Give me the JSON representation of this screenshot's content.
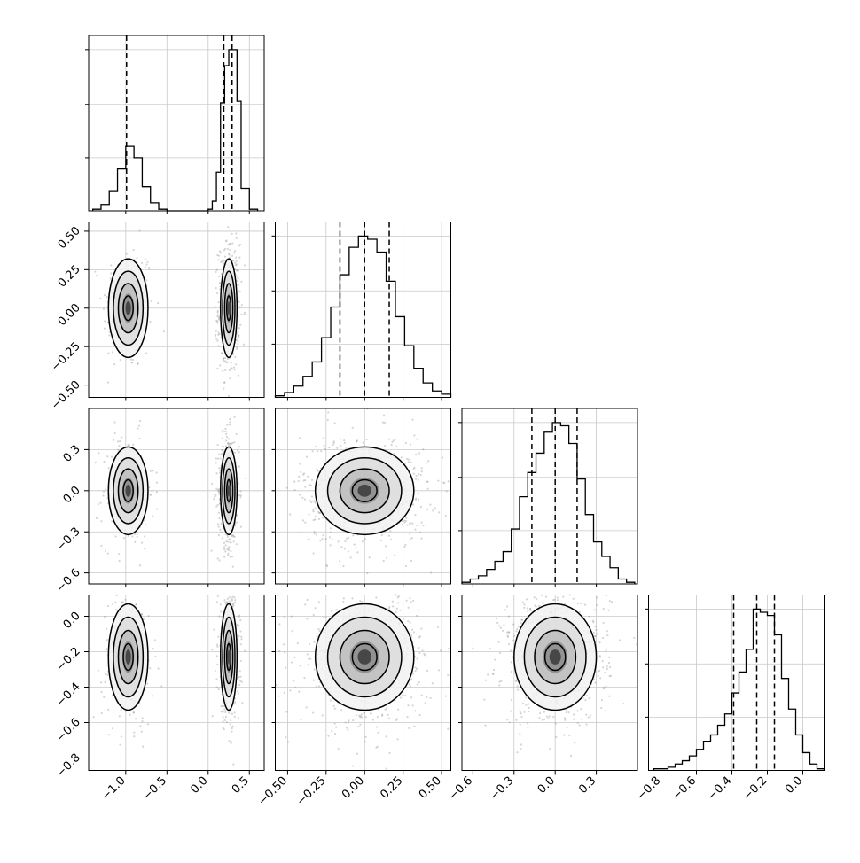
{
  "chart_data": {
    "type": "corner",
    "parameters": [
      {
        "ticks": [
          -1.0,
          -0.5,
          0.0,
          0.5
        ],
        "tick_labels": [
          "−1.0",
          "−0.5",
          "0.0",
          "0.5"
        ],
        "xlim": [
          -1.45,
          0.68
        ],
        "quantile_lines": [
          -0.99,
          0.19,
          0.29
        ],
        "hist_bins": [
          -1.4,
          -1.3,
          -1.2,
          -1.1,
          -1.0,
          -0.9,
          -0.8,
          -0.7,
          -0.6,
          -0.5,
          -0.4,
          -0.3,
          -0.2,
          -0.1,
          0.0,
          0.05,
          0.1,
          0.15,
          0.2,
          0.25,
          0.3,
          0.35,
          0.4,
          0.5,
          0.6
        ],
        "hist_counts": [
          1,
          4,
          12,
          26,
          40,
          33,
          15,
          5,
          1,
          0,
          0,
          0,
          0,
          0,
          1,
          6,
          24,
          67,
          90,
          100,
          100,
          68,
          14,
          1
        ],
        "hist_ymax": 100,
        "hist_ytick_fractions": [
          0.33,
          0.66,
          1.0
        ]
      },
      {
        "ticks": [
          -0.5,
          -0.25,
          0.0,
          0.25,
          0.5
        ],
        "tick_labels": [
          "−0.50",
          "−0.25",
          "0.00",
          "0.25",
          "0.50"
        ],
        "xlim": [
          -0.58,
          0.56
        ],
        "quantile_lines": [
          -0.16,
          0.0,
          0.16
        ],
        "hist_bins": [
          -0.58,
          -0.52,
          -0.46,
          -0.4,
          -0.34,
          -0.28,
          -0.22,
          -0.16,
          -0.1,
          -0.04,
          0.02,
          0.08,
          0.14,
          0.2,
          0.26,
          0.32,
          0.38,
          0.44,
          0.5,
          0.56
        ],
        "hist_counts": [
          1,
          3,
          7,
          13,
          22,
          37,
          56,
          76,
          93,
          100,
          98,
          90,
          72,
          50,
          32,
          18,
          9,
          4,
          2
        ],
        "hist_ymax": 100,
        "hist_ytick_fractions": [
          0.33,
          0.66,
          1.0
        ]
      },
      {
        "ticks": [
          -0.6,
          -0.3,
          0.0,
          0.3
        ],
        "tick_labels": [
          "−0.6",
          "−0.3",
          "0.0",
          "0.3"
        ],
        "xlim": [
          -0.68,
          0.6
        ],
        "quantile_lines": [
          -0.17,
          0.0,
          0.16
        ],
        "hist_bins": [
          -0.68,
          -0.62,
          -0.56,
          -0.5,
          -0.44,
          -0.38,
          -0.32,
          -0.26,
          -0.2,
          -0.14,
          -0.08,
          -0.02,
          0.04,
          0.1,
          0.16,
          0.22,
          0.28,
          0.34,
          0.4,
          0.46,
          0.52,
          0.58
        ],
        "hist_counts": [
          1,
          3,
          5,
          9,
          14,
          20,
          34,
          54,
          69,
          81,
          94,
          100,
          98,
          87,
          65,
          43,
          26,
          17,
          10,
          3,
          1
        ],
        "hist_ymax": 100,
        "hist_ytick_fractions": [
          0.33,
          0.66,
          1.0
        ]
      },
      {
        "ticks": [
          -0.8,
          -0.6,
          -0.4,
          -0.2,
          0.0
        ],
        "tick_labels": [
          "−0.8",
          "−0.6",
          "−0.4",
          "−0.2",
          "0.0"
        ],
        "xlim": [
          -0.87,
          0.12
        ],
        "quantile_lines": [
          -0.39,
          -0.26,
          -0.16
        ],
        "hist_bins": [
          -0.84,
          -0.8,
          -0.76,
          -0.72,
          -0.68,
          -0.64,
          -0.6,
          -0.56,
          -0.52,
          -0.48,
          -0.44,
          -0.4,
          -0.36,
          -0.32,
          -0.28,
          -0.24,
          -0.2,
          -0.16,
          -0.12,
          -0.08,
          -0.04,
          0.0,
          0.04,
          0.08,
          0.12
        ],
        "hist_counts": [
          1,
          1,
          2,
          4,
          6,
          9,
          13,
          18,
          22,
          28,
          35,
          48,
          61,
          75,
          100,
          98,
          96,
          84,
          57,
          38,
          22,
          11,
          4,
          1
        ],
        "hist_ymax": 100,
        "hist_ytick_fractions": [
          0.33,
          0.66,
          1.0
        ]
      }
    ],
    "clusters_param0": [
      {
        "x": -0.97,
        "sx": 0.12,
        "weight": 0.33
      },
      {
        "x": 0.25,
        "sx": 0.05,
        "weight": 0.67
      }
    ],
    "scatter_sigma": [
      0.16,
      0.16,
      0.15
    ]
  }
}
